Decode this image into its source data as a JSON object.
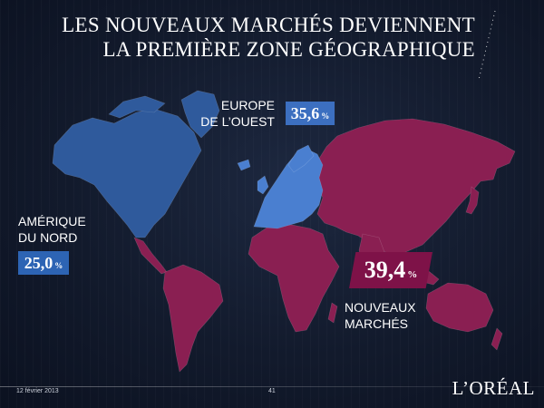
{
  "slide": {
    "title_line1": "LES NOUVEAUX MARCHÉS DEVIENNENT",
    "title_line2": "LA PREMIÈRE ZONE GÉOGRAPHIQUE"
  },
  "regions": {
    "europe": {
      "label_line1": "EUROPE",
      "label_line2": "DE L’OUEST",
      "value": "35,6",
      "unit": "%",
      "color": "#4a7fd0"
    },
    "north_america": {
      "label_line1": "AMÉRIQUE",
      "label_line2": "DU NORD",
      "value": "25,0",
      "unit": "%",
      "color": "#2f5a9c"
    },
    "new_markets": {
      "label_line1": "NOUVEAUX",
      "label_line2": "MARCHÉS",
      "value": "39,4",
      "unit": "%",
      "color": "#8a1f52"
    }
  },
  "footer": {
    "date": "12 février 2013",
    "page": "41",
    "logo": "L’ORÉAL"
  }
}
